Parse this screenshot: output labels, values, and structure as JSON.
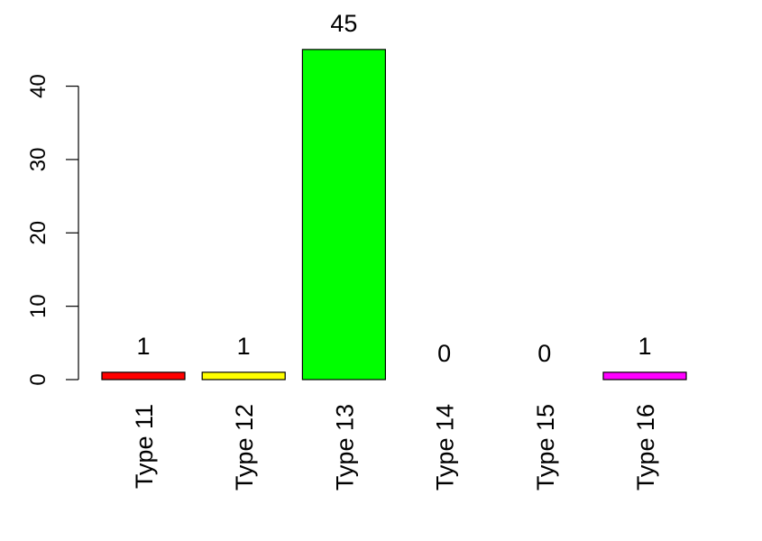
{
  "chart_data": {
    "type": "bar",
    "categories": [
      "Type 11",
      "Type 12",
      "Type 13",
      "Type 14",
      "Type 15",
      "Type 16"
    ],
    "values": [
      1,
      1,
      45,
      0,
      0,
      1
    ],
    "data_labels": [
      "1",
      "1",
      "45",
      "0",
      "0",
      "1"
    ],
    "colors": [
      "#ff0000",
      "#ffff00",
      "#00ff00",
      "#00ffff",
      "#0000ff",
      "#ff00ff"
    ],
    "title": "",
    "xlabel": "",
    "ylabel": "",
    "ylim": [
      0,
      45
    ],
    "yticks": [
      0,
      10,
      20,
      30,
      40
    ],
    "grid": false,
    "legend": "none"
  }
}
